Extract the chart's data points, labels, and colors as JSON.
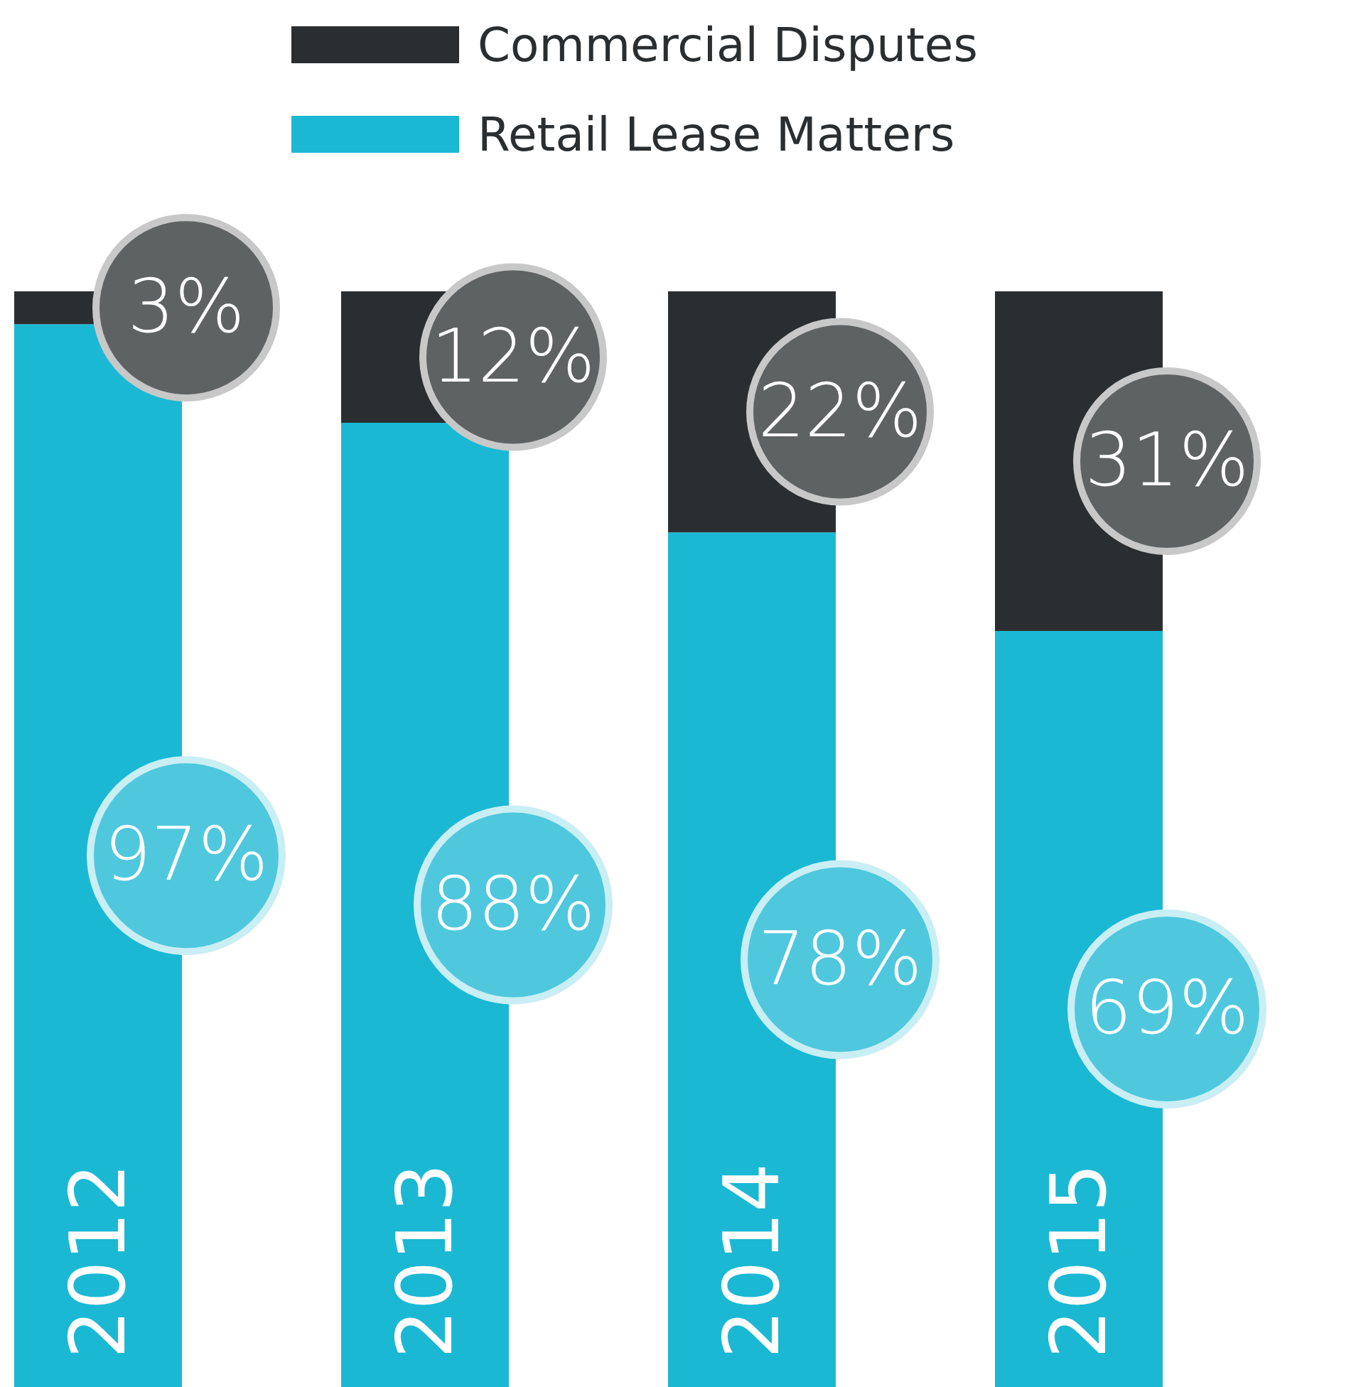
{
  "chart_data": {
    "type": "bar",
    "stacked": true,
    "legend": "top",
    "categories": [
      "2012",
      "2013",
      "2014",
      "2015"
    ],
    "series": [
      {
        "name": "Retail Lease Matters",
        "color": "#1bb8d4",
        "values": [
          97,
          88,
          78,
          69
        ],
        "value_labels": [
          "97%",
          "88%",
          "78%",
          "69%"
        ]
      },
      {
        "name": "Commercial Disputes",
        "color": "#2b2e30",
        "values": [
          3,
          12,
          22,
          31
        ],
        "value_labels": [
          "3%",
          "12%",
          "22%",
          "31%"
        ]
      }
    ]
  }
}
